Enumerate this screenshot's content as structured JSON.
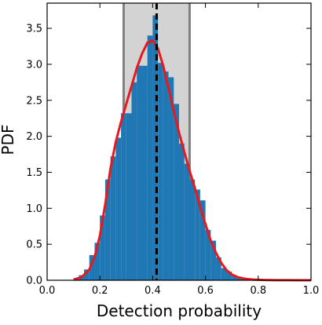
{
  "chart_data": {
    "type": "bar",
    "title": "",
    "xlabel": "Detection probability",
    "ylabel": "PDF",
    "xlim": [
      0.0,
      1.0
    ],
    "ylim": [
      0.0,
      3.85
    ],
    "grid": false,
    "legend": "none",
    "xticks": [
      "0.0",
      "0.2",
      "0.4",
      "0.6",
      "0.8",
      "1.0"
    ],
    "xtick_values": [
      0.0,
      0.2,
      0.4,
      0.6,
      0.8,
      1.0
    ],
    "yticks": [
      "0.0",
      "0.5",
      "1.0",
      "1.5",
      "2.0",
      "2.5",
      "3.0",
      "3.5"
    ],
    "ytick_values": [
      0.0,
      0.5,
      1.0,
      1.5,
      2.0,
      2.5,
      3.0,
      3.5
    ],
    "histogram": {
      "color": "#1f77b4",
      "bin_edges": [
        0.1,
        0.12,
        0.14,
        0.16,
        0.18,
        0.2,
        0.22,
        0.24,
        0.26,
        0.28,
        0.3,
        0.32,
        0.34,
        0.36,
        0.38,
        0.4,
        0.42,
        0.44,
        0.46,
        0.48,
        0.5,
        0.52,
        0.54,
        0.56,
        0.58,
        0.6,
        0.62,
        0.64,
        0.66,
        0.68,
        0.7,
        0.72,
        0.74,
        0.76,
        0.78,
        0.8
      ],
      "values": [
        0.02,
        0.07,
        0.15,
        0.35,
        0.52,
        0.9,
        1.4,
        1.72,
        1.98,
        2.32,
        2.32,
        2.75,
        2.98,
        2.98,
        3.4,
        3.68,
        3.02,
        2.9,
        2.82,
        2.45,
        1.9,
        1.62,
        1.4,
        1.26,
        1.11,
        0.7,
        0.55,
        0.32,
        0.17,
        0.12,
        0.07,
        0.04,
        0.02,
        0.01,
        0.005
      ]
    },
    "kde": {
      "color": "#e8191c",
      "x": [
        0.1,
        0.13,
        0.16,
        0.18,
        0.2,
        0.22,
        0.24,
        0.26,
        0.28,
        0.3,
        0.32,
        0.34,
        0.36,
        0.38,
        0.4,
        0.42,
        0.44,
        0.46,
        0.48,
        0.5,
        0.52,
        0.54,
        0.56,
        0.58,
        0.6,
        0.62,
        0.64,
        0.66,
        0.68,
        0.7,
        0.72,
        0.75,
        0.78,
        0.82,
        0.86,
        0.9,
        1.0
      ],
      "y": [
        0.01,
        0.04,
        0.15,
        0.32,
        0.62,
        1.05,
        1.55,
        1.92,
        2.2,
        2.45,
        2.7,
        2.95,
        3.15,
        3.3,
        3.33,
        3.22,
        2.98,
        2.67,
        2.35,
        2.05,
        1.78,
        1.52,
        1.28,
        1.02,
        0.78,
        0.55,
        0.38,
        0.24,
        0.14,
        0.08,
        0.045,
        0.02,
        0.01,
        0.004,
        0.002,
        0.001,
        0.0
      ]
    },
    "median_line": {
      "x": 0.415,
      "color": "#000000",
      "style": "dashed"
    },
    "interval_band": {
      "x0": 0.29,
      "x1": 0.54,
      "fill": "#d3d3d3",
      "edge": "#808080"
    }
  }
}
